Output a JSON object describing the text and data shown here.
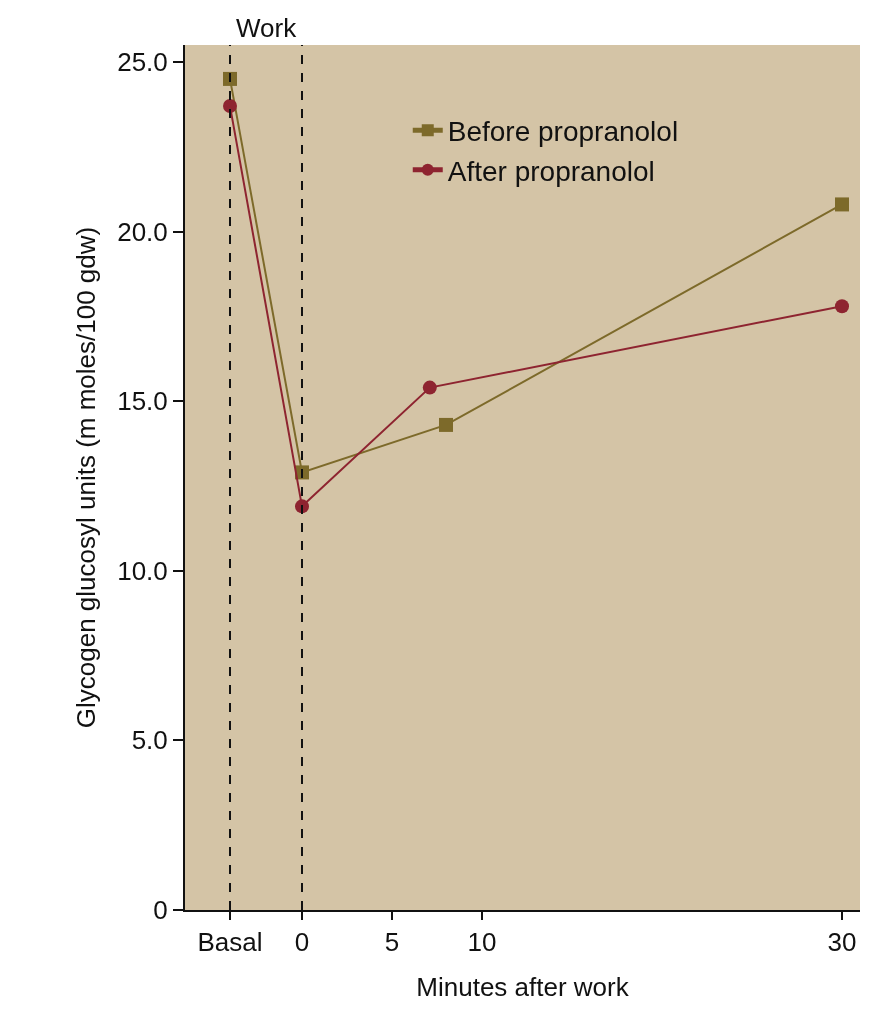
{
  "chart_data": {
    "type": "line",
    "xlabel": "Minutes after work",
    "ylabel": "Glycogen glucosyl units (m moles/100 gdw)",
    "series": [
      {
        "name": "Before propranolol",
        "color": "#7d6a2a",
        "marker": "square",
        "x": [
          -4,
          0,
          8.0,
          30
        ],
        "values": [
          24.5,
          12.9,
          14.3,
          20.8
        ]
      },
      {
        "name": "After propranolol",
        "color": "#8e2430",
        "marker": "circle",
        "x": [
          -4,
          0,
          7.1,
          30
        ],
        "values": [
          23.7,
          11.9,
          15.4,
          17.8
        ]
      }
    ],
    "xlim": [
      -6.5,
      31
    ],
    "xticks": [
      {
        "value": -4,
        "label": "Basal"
      },
      0,
      5,
      10,
      30
    ],
    "ylim": [
      0,
      25.5
    ],
    "yticks": [
      0,
      {
        "value": 5,
        "label": "5.0"
      },
      {
        "value": 10,
        "label": "10.0"
      },
      {
        "value": 15,
        "label": "15.0"
      },
      {
        "value": 20,
        "label": "20.0"
      },
      {
        "value": 25,
        "label": "25.0"
      }
    ],
    "ref_lines": [
      {
        "axis": "x",
        "value": -4,
        "color": "#111111",
        "line_style": "dashed"
      },
      {
        "axis": "x",
        "value": 0,
        "color": "#111111",
        "line_style": "dashed"
      }
    ],
    "annotations": [
      "Work"
    ],
    "grid": false,
    "legend": "top",
    "line_style": "solid"
  }
}
